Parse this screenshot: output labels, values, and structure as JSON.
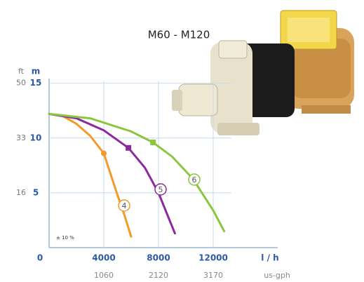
{
  "chart_data": {
    "type": "line",
    "title": "M60 - M120",
    "y_unit": "m",
    "y_unit_alt": "ft",
    "x_unit": "l / h",
    "x_unit_alt": "us-gph",
    "annotation": "± 10 %",
    "xlim": [
      0,
      16000
    ],
    "ylim": [
      0,
      16
    ],
    "xticks": [
      0,
      4000,
      8000,
      12000
    ],
    "xticks_alt": [
      {
        "value": 4000,
        "label": "1060"
      },
      {
        "value": 8000,
        "label": "2120"
      },
      {
        "value": 12000,
        "label": "3170"
      }
    ],
    "yticks": [
      5,
      10,
      15
    ],
    "yticks_alt": [
      {
        "value": 5,
        "label": "16"
      },
      {
        "value": 10,
        "label": "33"
      },
      {
        "value": 15,
        "label": "50"
      }
    ],
    "grid": true,
    "series": [
      {
        "name": "4",
        "color": "#f39a2b",
        "x": [
          0,
          1000,
          2000,
          3000,
          4000,
          5000,
          5500,
          6000
        ],
        "values": [
          12.2,
          12.0,
          11.3,
          10.2,
          8.6,
          4.8,
          3.0,
          1.0
        ],
        "marker": {
          "x": 4000,
          "y": 8.6,
          "shape": "circle"
        }
      },
      {
        "name": "5",
        "color": "#8b2a9c",
        "x": [
          0,
          2000,
          4000,
          5800,
          7000,
          8000,
          9200
        ],
        "values": [
          12.2,
          11.8,
          10.7,
          9.1,
          7.3,
          5.0,
          1.3
        ],
        "marker": {
          "x": 5800,
          "y": 9.1,
          "shape": "square"
        }
      },
      {
        "name": "6",
        "color": "#8cc63f",
        "x": [
          0,
          3000,
          6000,
          7600,
          9000,
          10500,
          12000,
          12800
        ],
        "values": [
          12.2,
          11.8,
          10.6,
          9.6,
          8.3,
          6.3,
          3.4,
          1.5
        ],
        "marker": {
          "x": 7600,
          "y": 9.6,
          "shape": "square"
        }
      }
    ]
  }
}
